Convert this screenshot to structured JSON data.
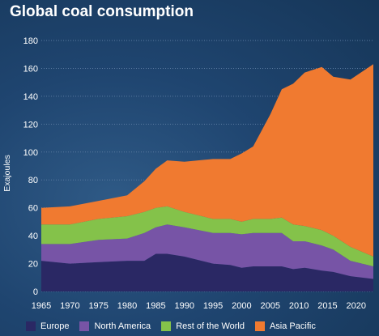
{
  "title": "Global coal consumption",
  "colors": {
    "Europe": "#2a2864",
    "North America": "#7754a6",
    "Rest of the World": "#84c24a",
    "Asia Pacific": "#f07a30",
    "gridline": "#5a7aa0"
  },
  "chart_data": {
    "type": "area",
    "stacked": true,
    "title": "Global coal consumption",
    "xlabel": "",
    "ylabel": "Exajoules",
    "xlim": [
      1965,
      2023
    ],
    "ylim": [
      0,
      180
    ],
    "xticks": [
      1965,
      1970,
      1975,
      1980,
      1985,
      1990,
      1995,
      2000,
      2005,
      2010,
      2015,
      2020
    ],
    "yticks": [
      0,
      20,
      40,
      60,
      80,
      100,
      120,
      140,
      160,
      180
    ],
    "grid": true,
    "legend_position": "bottom",
    "x": [
      1965,
      1970,
      1975,
      1980,
      1983,
      1985,
      1987,
      1990,
      1995,
      1998,
      2000,
      2002,
      2005,
      2007,
      2009,
      2011,
      2014,
      2016,
      2019,
      2023
    ],
    "series": [
      {
        "name": "Europe",
        "values": [
          22,
          20,
          21,
          22,
          22,
          27,
          27,
          25,
          20,
          19,
          17,
          18,
          18,
          18,
          16,
          17,
          15,
          14,
          11,
          9
        ]
      },
      {
        "name": "North America",
        "values": [
          12,
          14,
          16,
          16,
          20,
          19,
          21,
          21,
          22,
          23,
          24,
          24,
          24,
          24,
          20,
          19,
          18,
          16,
          11,
          9
        ]
      },
      {
        "name": "Rest of the World",
        "values": [
          14,
          14,
          15,
          16,
          15,
          14,
          13,
          11,
          10,
          10,
          9,
          10,
          10,
          11,
          12,
          11,
          11,
          10,
          10,
          7
        ]
      },
      {
        "name": "Asia Pacific",
        "values": [
          12,
          13,
          13,
          15,
          22,
          28,
          33,
          36,
          43,
          43,
          49,
          52,
          75,
          92,
          101,
          110,
          117,
          114,
          120,
          138
        ]
      }
    ]
  }
}
